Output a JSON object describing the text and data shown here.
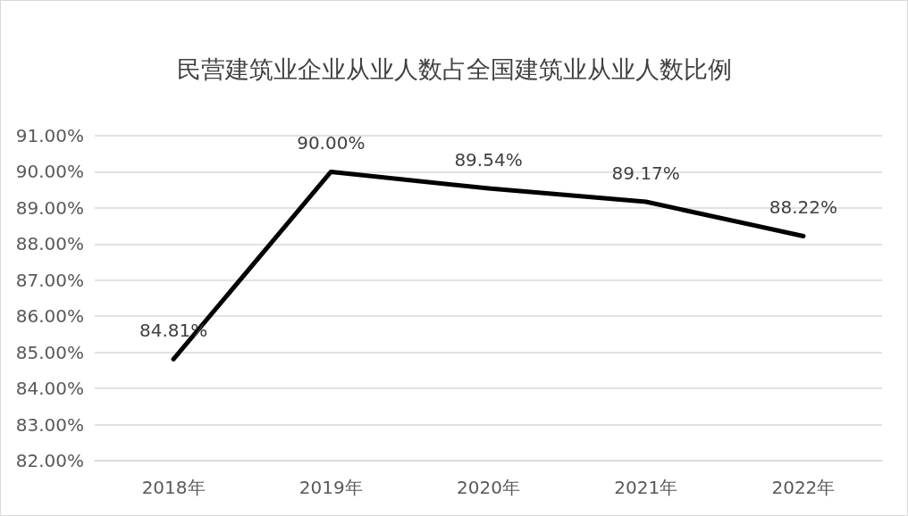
{
  "chart_data": {
    "type": "line",
    "title": "民营建筑业企业从业人数占全国建筑业从业人数比例",
    "categories": [
      "2018年",
      "2019年",
      "2020年",
      "2021年",
      "2022年"
    ],
    "series": [
      {
        "color": "#000000",
        "values": [
          84.81,
          90.0,
          89.54,
          89.17,
          88.22
        ],
        "value_labels": [
          "84.81%",
          "90.00%",
          "89.54%",
          "89.17%",
          "88.22%"
        ]
      }
    ],
    "ylim": [
      82,
      91
    ],
    "yticks": [
      {
        "value": 82,
        "label": "82.00%"
      },
      {
        "value": 83,
        "label": "83.00%"
      },
      {
        "value": 84,
        "label": "84.00%"
      },
      {
        "value": 85,
        "label": "85.00%"
      },
      {
        "value": 86,
        "label": "86.00%"
      },
      {
        "value": 87,
        "label": "87.00%"
      },
      {
        "value": 88,
        "label": "88.00%"
      },
      {
        "value": 89,
        "label": "89.00%"
      },
      {
        "value": 90,
        "label": "90.00%"
      },
      {
        "value": 91,
        "label": "91.00%"
      }
    ],
    "grid": "y",
    "marker": "none",
    "line_style": "solid"
  }
}
